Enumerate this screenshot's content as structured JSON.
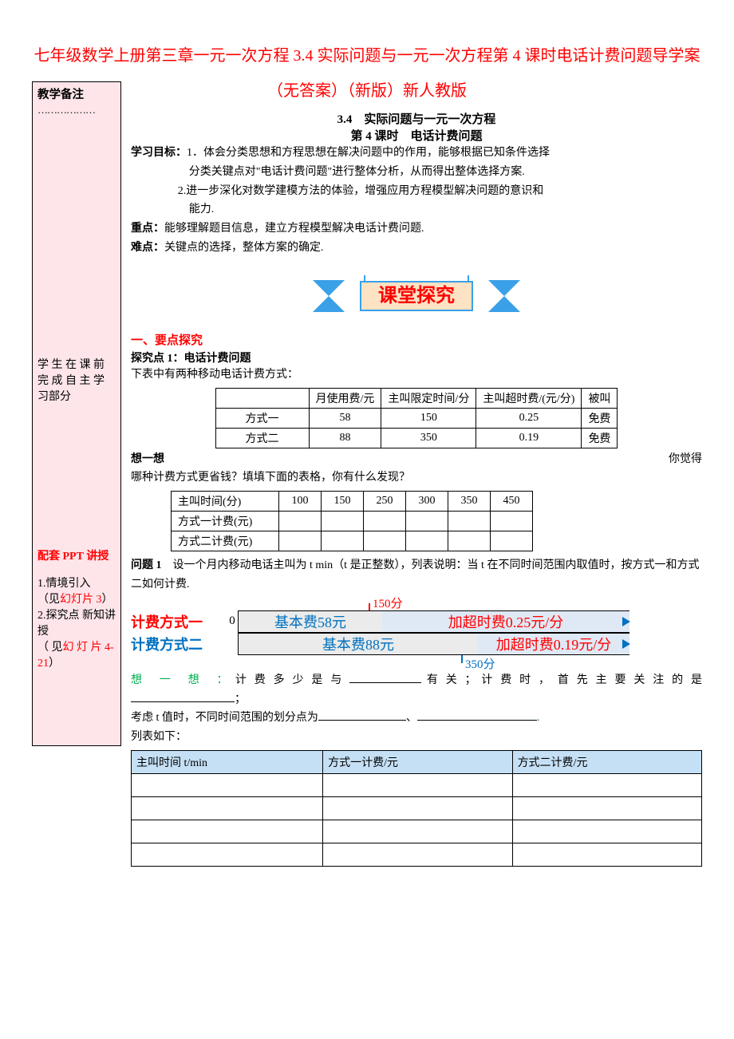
{
  "title": "七年级数学上册第三章一元一次方程 3.4 实际问题与一元一次方程第 4 课时电话计费问题导学案（无答案）（新版）新人教版",
  "sidebar": {
    "top": "教学备注",
    "dashes": "………………",
    "prestudy_l1": "学 生 在 课 前",
    "prestudy_l2": "完 成 自 主 学",
    "prestudy_l3": "习部分",
    "ppt_label1": "配套 ",
    "ppt_label2": "PPT ",
    "ppt_label3": "讲授",
    "item1_a": "1.情境引入",
    "item1_b": "（见",
    "item1_c": "幻灯片 3",
    "item1_d": "）",
    "item2_a": "2.探究点  新知讲授",
    "item2_b": "（ 见",
    "item2_c": "幻 灯 片 4-21",
    "item2_d": "）"
  },
  "header": {
    "section": "3.4　实际问题与一元一次方程",
    "lesson": "第 4 课时　电话计费问题"
  },
  "goals": {
    "label": "学习目标：",
    "g1": "1．体会分类思想和方程思想在解决问题中的作用，能够根据已知条件选择",
    "g1b": "分类关键点对\"电话计费问题\"进行整体分析，从而得出整体选择方案.",
    "g2": "2.进一步深化对数学建模方法的体验，增强应用方程模型解决问题的意识和",
    "g2b": "能力."
  },
  "focus": {
    "zd_label": "重点：",
    "zd": "能够理解题目信息，建立方程模型解决电话计费问题.",
    "nd_label": "难点：",
    "nd": "关键点的选择，整体方案的确定."
  },
  "banner": {
    "text": "课堂探究",
    "box_fill": "#fde2c4",
    "box_border": "#3aa0e8",
    "text_color": "#ff0000",
    "tri_fill": "#3aa0e8"
  },
  "explore": {
    "h": "一、要点探究",
    "p1_title": "探究点 1：电话计费问题",
    "p1_intro": "下表中有两种移动电话计费方式："
  },
  "plans": {
    "headers": [
      "",
      "月使用费/元",
      "主叫限定时间/分",
      "主叫超时费/(元/分)",
      "被叫"
    ],
    "rows": [
      [
        "方式一",
        "58",
        "150",
        "0.25",
        "免费"
      ],
      [
        "方式二",
        "88",
        "350",
        "0.19",
        "免费"
      ]
    ]
  },
  "think": {
    "label": "想一想",
    "rest_before": "你觉得",
    "rest": "哪种计费方式更省钱？填填下面的表格，你有什么发现？"
  },
  "compare": {
    "row_labels": [
      "主叫时间(分)",
      "方式一计费(元)",
      "方式二计费(元)"
    ],
    "cols": [
      "100",
      "150",
      "250",
      "300",
      "350",
      "450"
    ]
  },
  "q1": {
    "label": "问题 1",
    "text": "　设一个月内移动电话主叫为 t min（t 是正整数），列表说明：当 t 在不同时间范围内取值时，按方式一和方式二如何计费."
  },
  "timeline": {
    "label1": "计费方式一",
    "label2": "计费方式二",
    "zero": "0",
    "bar1a": "基本费58元",
    "bar1b": "加超时费0.25元/分",
    "bar2a": "基本费88元",
    "bar2b": "加超时费0.19元/分",
    "tick1": "150分",
    "tick2": "350分",
    "colors": {
      "base_fill": "#eaebea",
      "over_fill": "#dfe9f5",
      "base_text": "#0070c0",
      "over_text": "#ff0000",
      "tick1_color": "#ff0000",
      "tick2_color": "#0070c0",
      "arrow_color": "#0070c0"
    }
  },
  "think2": {
    "label": "想 一 想 ：",
    "l1_a": "计 费 多 少 是 与 ",
    "l1_b": " 有 关 ； 计 费 时 ， 首 先 主 要 关 注 的 是",
    "l1_c": "；",
    "l2_a": "考虑 t 值时，不同时间范围的划分点为",
    "l2_b": "、",
    "l2_end": ".",
    "tail": "列表如下："
  },
  "bluetable": {
    "headers": [
      "主叫时间 t/min",
      "方式一计费/元",
      "方式二计费/元"
    ]
  }
}
